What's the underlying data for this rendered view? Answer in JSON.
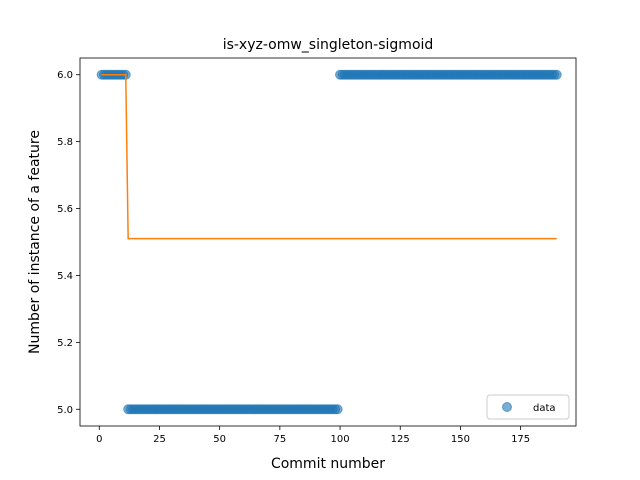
{
  "chart_data": {
    "type": "scatter",
    "title": "is-xyz-omw_singleton-sigmoid",
    "xlabel": "Commit number",
    "ylabel": "Number of instance of a feature",
    "xlim": [
      -8,
      198
    ],
    "ylim": [
      4.95,
      6.05
    ],
    "xticks": [
      0,
      25,
      50,
      75,
      100,
      125,
      150,
      175
    ],
    "yticks": [
      5.0,
      5.2,
      5.4,
      5.6,
      5.8,
      6.0
    ],
    "xtick_labels": [
      "0",
      "25",
      "50",
      "75",
      "100",
      "125",
      "150",
      "175"
    ],
    "ytick_labels": [
      "5.0",
      "5.2",
      "5.4",
      "5.6",
      "5.8",
      "6.0"
    ],
    "legend": {
      "position": "lower-right",
      "entries": [
        "data"
      ]
    },
    "colors": {
      "data": "#1f77b4",
      "fit": "#ff7f0e"
    },
    "series": [
      {
        "name": "data",
        "kind": "points",
        "segments": [
          {
            "x_start": 1,
            "x_end": 11,
            "y": 6.0
          },
          {
            "x_start": 12,
            "x_end": 99,
            "y": 5.0
          },
          {
            "x_start": 100,
            "x_end": 190,
            "y": 6.0
          }
        ]
      },
      {
        "kind": "line",
        "points": [
          [
            1,
            6.0
          ],
          [
            11,
            6.0
          ],
          [
            12,
            5.51
          ],
          [
            190,
            5.51
          ]
        ]
      }
    ]
  }
}
